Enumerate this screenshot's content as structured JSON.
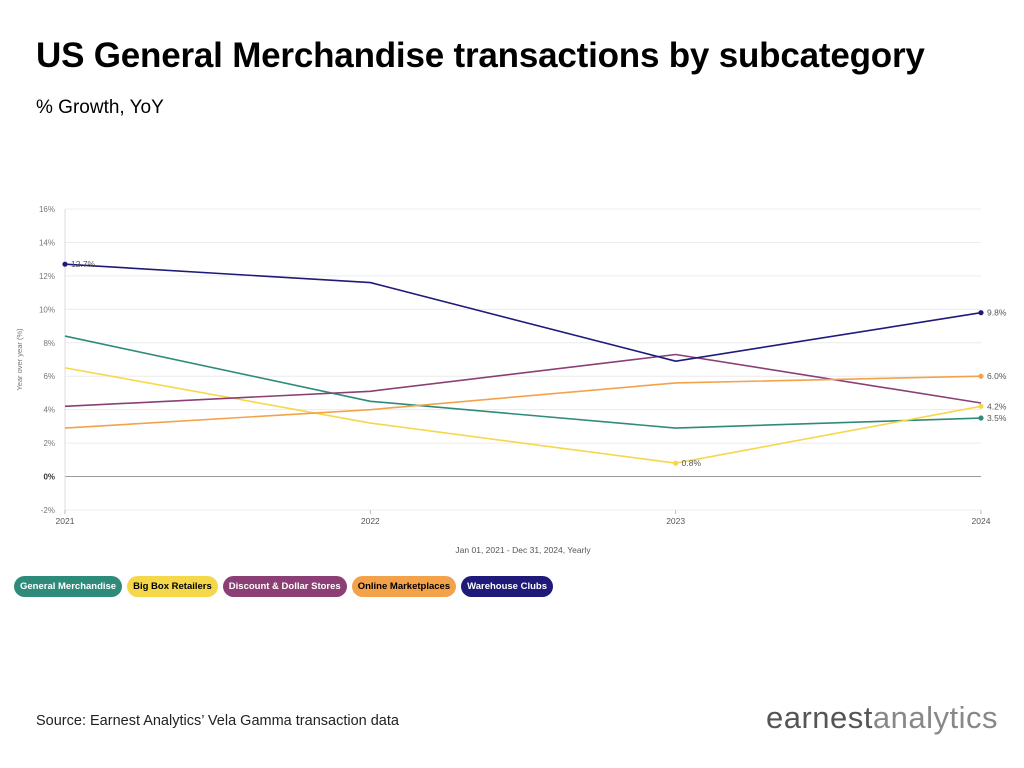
{
  "header": {
    "title": "US General Merchandise transactions by subcategory",
    "subtitle": "% Growth, YoY"
  },
  "footer": {
    "source": "Source: Earnest Analytics’ Vela Gamma transaction data",
    "brand_part1": "earnest",
    "brand_part2": "analytics"
  },
  "chart_data": {
    "type": "line",
    "title": "US General Merchandise transactions by subcategory",
    "subtitle": "% Growth, YoY",
    "ylabel": "Year over year (%)",
    "xlabel": "Jan 01, 2021 - Dec 31, 2024, Yearly",
    "x": [
      "2021",
      "2022",
      "2023",
      "2024"
    ],
    "ylim": [
      -2,
      16
    ],
    "yticks": [
      -2,
      0,
      2,
      4,
      6,
      8,
      10,
      12,
      14,
      16
    ],
    "ytick_labels": [
      "-2%",
      "0%",
      "2%",
      "4%",
      "6%",
      "8%",
      "10%",
      "12%",
      "14%",
      "16%"
    ],
    "grid": true,
    "legend_position": "bottom-left",
    "series": [
      {
        "name": "General Merchandise",
        "color": "#2e8b7a",
        "text_color": "#ffffff",
        "values": [
          8.4,
          4.5,
          2.9,
          3.5
        ],
        "labels": [
          "",
          "",
          "",
          "3.5%"
        ]
      },
      {
        "name": "Big Box Retailers",
        "color": "#f5d84a",
        "text_color": "#000000",
        "values": [
          6.5,
          3.2,
          0.8,
          4.2
        ],
        "labels": [
          "",
          "",
          "0.8%",
          "4.2%"
        ]
      },
      {
        "name": "Discount & Dollar Stores",
        "color": "#8b3f74",
        "text_color": "#ffffff",
        "values": [
          4.2,
          5.1,
          7.3,
          4.4
        ],
        "labels": [
          "",
          "",
          "",
          ""
        ]
      },
      {
        "name": "Online Marketplaces",
        "color": "#f4a24a",
        "text_color": "#000000",
        "values": [
          2.9,
          4.0,
          5.6,
          6.0
        ],
        "labels": [
          "",
          "",
          "",
          "6.0%"
        ]
      },
      {
        "name": "Warehouse Clubs",
        "color": "#1f1a7a",
        "text_color": "#ffffff",
        "values": [
          12.7,
          11.6,
          6.9,
          9.8
        ],
        "labels": [
          "12.7%",
          "",
          "",
          "9.8%"
        ]
      }
    ]
  }
}
